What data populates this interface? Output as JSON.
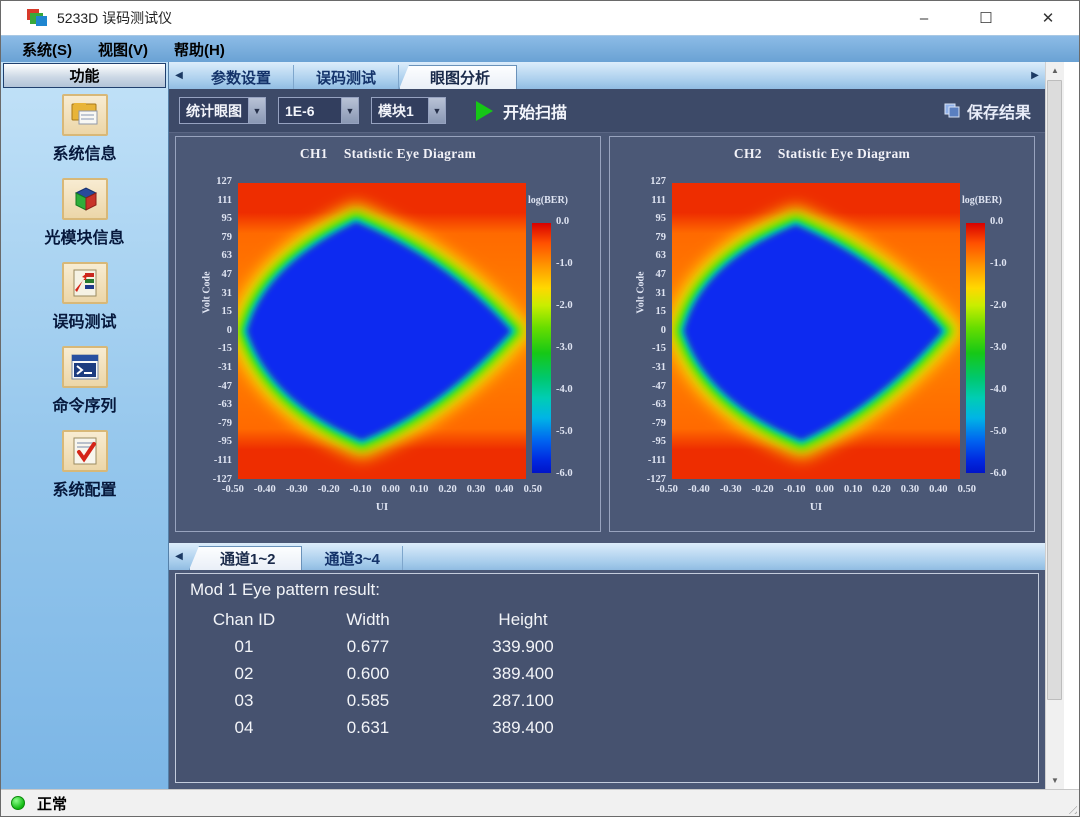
{
  "window": {
    "title": "5233D 误码测试仪",
    "minimize": "–",
    "maximize": "☐",
    "close": "✕"
  },
  "menu": {
    "items": [
      "系统(S)",
      "视图(V)",
      "帮助(H)"
    ]
  },
  "sidebar": {
    "header": "功能",
    "items": [
      {
        "label": "系统信息",
        "icon": "system-info-icon"
      },
      {
        "label": "光模块信息",
        "icon": "optical-module-info-icon"
      },
      {
        "label": "误码测试",
        "icon": "ber-test-icon"
      },
      {
        "label": "命令序列",
        "icon": "command-sequence-icon"
      },
      {
        "label": "系统配置",
        "icon": "system-config-icon"
      }
    ]
  },
  "tabs": {
    "items": [
      {
        "label": "参数设置",
        "active": false
      },
      {
        "label": "误码测试",
        "active": false
      },
      {
        "label": "眼图分析",
        "active": true
      }
    ],
    "left_arrow": "◀",
    "right_arrow": "▶"
  },
  "toolbar": {
    "eye_mode": "统计眼图",
    "ber_threshold": "1E-6",
    "module": "模块1",
    "dropdown_arrow": "▼",
    "start_scan": "开始扫描",
    "save_results": "保存结果"
  },
  "charts": [
    {
      "channel": "CH1",
      "title": "Statistic Eye Diagram",
      "ylabel": "Volt Code",
      "xlabel": "UI",
      "colorbar_label": "log(BER)",
      "y_ticks": [
        "127",
        "111",
        "95",
        "79",
        "63",
        "47",
        "31",
        "15",
        "0",
        "-15",
        "-31",
        "-47",
        "-63",
        "-79",
        "-95",
        "-111",
        "-127"
      ],
      "x_ticks": [
        "-0.50",
        "-0.40",
        "-0.30",
        "-0.20",
        "-0.10",
        "0.00",
        "0.10",
        "0.20",
        "0.30",
        "0.40",
        "0.50"
      ],
      "colorbar_ticks": [
        "0.0",
        "-1.0",
        "-2.0",
        "-3.0",
        "-4.0",
        "-5.0",
        "-6.0"
      ]
    },
    {
      "channel": "CH2",
      "title": "Statistic Eye Diagram",
      "ylabel": "Volt Code",
      "xlabel": "UI",
      "colorbar_label": "log(BER)",
      "y_ticks": [
        "127",
        "111",
        "95",
        "79",
        "63",
        "47",
        "31",
        "15",
        "0",
        "-15",
        "-31",
        "-47",
        "-63",
        "-79",
        "-95",
        "-111",
        "-127"
      ],
      "x_ticks": [
        "-0.50",
        "-0.40",
        "-0.30",
        "-0.20",
        "-0.10",
        "0.00",
        "0.10",
        "0.20",
        "0.30",
        "0.40",
        "0.50"
      ],
      "colorbar_ticks": [
        "0.0",
        "-1.0",
        "-2.0",
        "-3.0",
        "-4.0",
        "-5.0",
        "-6.0"
      ]
    }
  ],
  "chart_data": [
    {
      "type": "heatmap",
      "title": "CH1 Statistic Eye Diagram",
      "xlabel": "UI",
      "ylabel": "Volt Code",
      "xlim": [
        -0.5,
        0.5
      ],
      "ylim": [
        -127,
        127
      ],
      "x_ticks": [
        -0.5,
        -0.4,
        -0.3,
        -0.2,
        -0.1,
        0.0,
        0.1,
        0.2,
        0.3,
        0.4,
        0.5
      ],
      "y_ticks": [
        127,
        111,
        95,
        79,
        63,
        47,
        31,
        15,
        0,
        -15,
        -31,
        -47,
        -63,
        -79,
        -95,
        -111,
        -127
      ],
      "colorbar_label": "log(BER)",
      "colorbar_ticks": [
        0.0,
        -1.0,
        -2.0,
        -3.0,
        -4.0,
        -5.0,
        -6.0
      ],
      "description": "Eye-opening heatmap: deep-blue rounded-diamond low-BER region (log BER ~ -6) centered near UI 0 / code 0, spanning about UI -0.45 to 0.42 and code -110 to 105, fringed by cyan-green-yellow transition rings, on an orange/red high-BER background (log BER ~ 0) with darker red bands at top and bottom"
    },
    {
      "type": "heatmap",
      "title": "CH2 Statistic Eye Diagram",
      "xlabel": "UI",
      "ylabel": "Volt Code",
      "xlim": [
        -0.5,
        0.5
      ],
      "ylim": [
        -127,
        127
      ],
      "x_ticks": [
        -0.5,
        -0.4,
        -0.3,
        -0.2,
        -0.1,
        0.0,
        0.1,
        0.2,
        0.3,
        0.4,
        0.5
      ],
      "y_ticks": [
        127,
        111,
        95,
        79,
        63,
        47,
        31,
        15,
        0,
        -15,
        -31,
        -47,
        -63,
        -79,
        -95,
        -111,
        -127
      ],
      "colorbar_label": "log(BER)",
      "colorbar_ticks": [
        0.0,
        -1.0,
        -2.0,
        -3.0,
        -4.0,
        -5.0,
        -6.0
      ],
      "description": "Eye-opening heatmap similar to CH1: deep-blue rounded-diamond low-BER eye centered near UI 0 / code 0 with green/yellow fringe on orange/red background"
    }
  ],
  "bottom_tabs": {
    "items": [
      {
        "label": "通道1~2",
        "active": true
      },
      {
        "label": "通道3~4",
        "active": false
      }
    ],
    "left_arrow": "◀"
  },
  "results": {
    "title": "Mod 1 Eye pattern result:",
    "columns": [
      "Chan ID",
      "Width",
      "Height"
    ],
    "rows": [
      [
        "01",
        "0.677",
        "339.900"
      ],
      [
        "02",
        "0.600",
        "389.400"
      ],
      [
        "03",
        "0.585",
        "287.100"
      ],
      [
        "04",
        "0.631",
        "389.400"
      ]
    ]
  },
  "status": {
    "text": "正常"
  },
  "colors": {
    "accent_menu": "#6aa2d4",
    "panel_dark": "#4b5876",
    "eye_core": "#0a2bf0",
    "eye_ring_green": "#2fe000",
    "eye_ring_yellow": "#ffec00",
    "plot_background": "#ff7c00",
    "play_green": "#16c716",
    "status_green": "#12b912"
  }
}
